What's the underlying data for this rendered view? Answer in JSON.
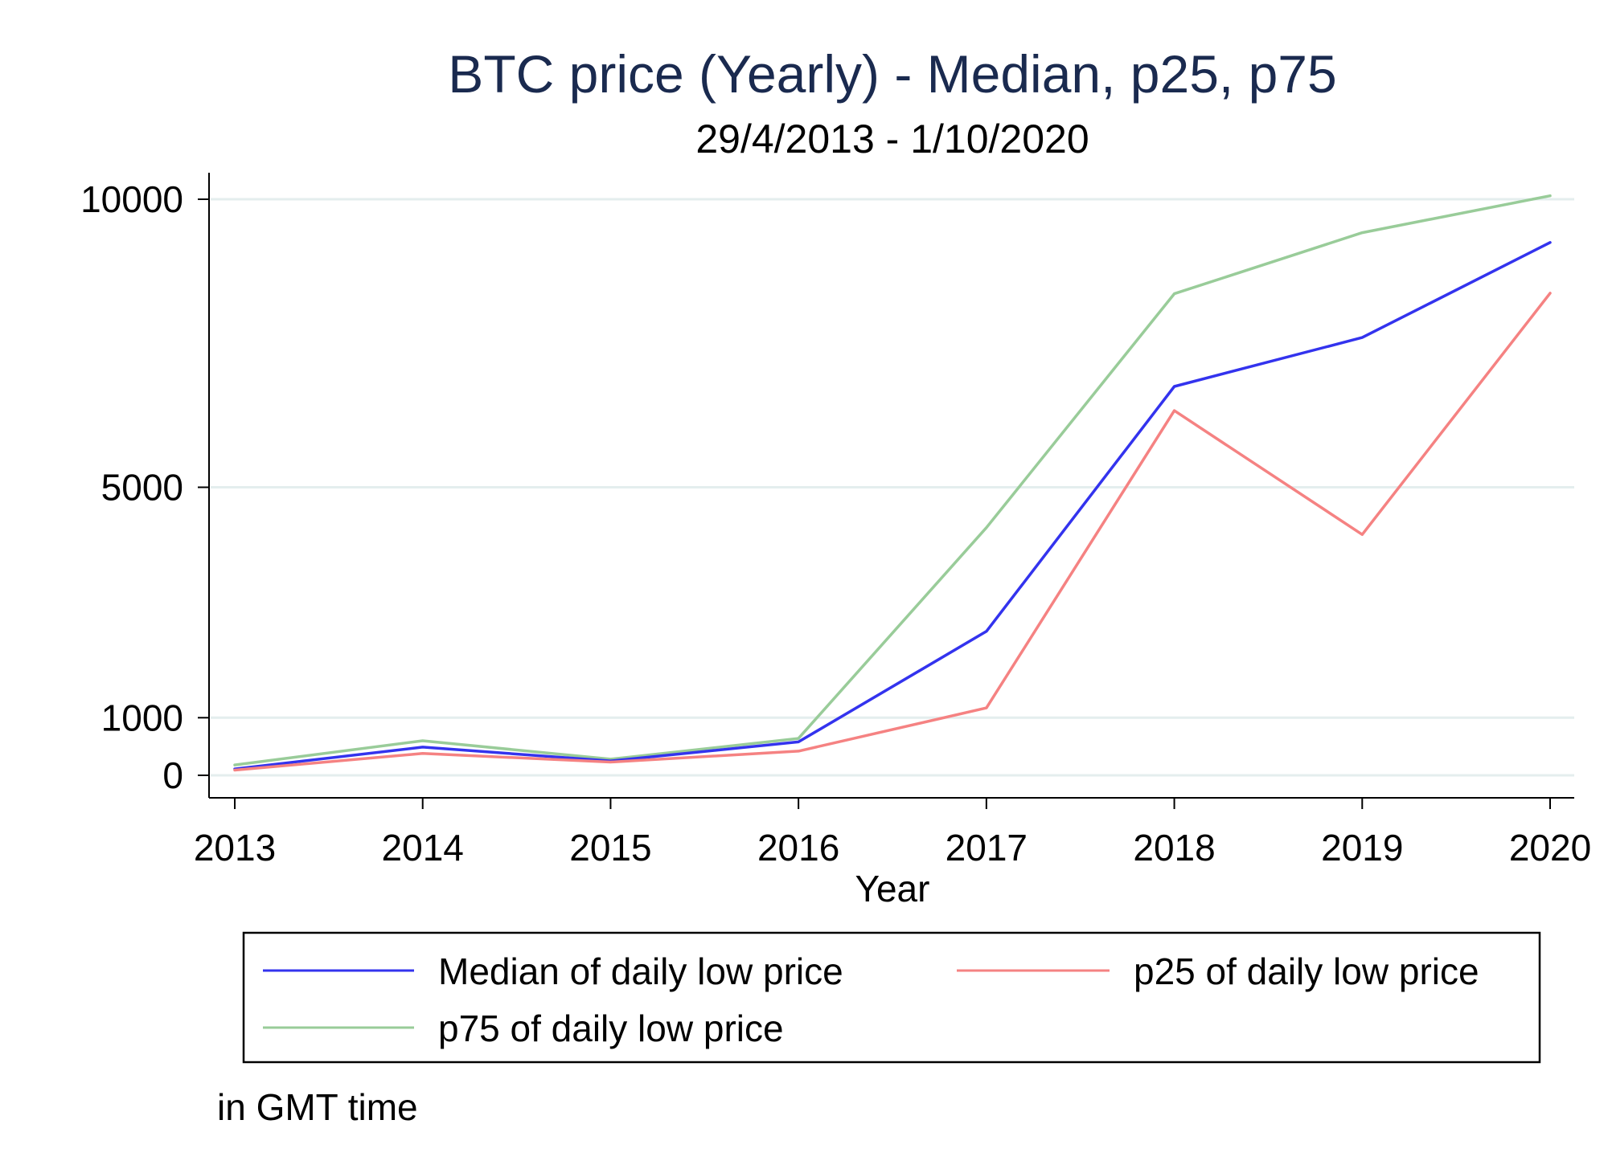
{
  "chart_data": {
    "type": "line",
    "title": "BTC price (Yearly) - Median, p25, p75",
    "subtitle": "29/4/2013 - 1/10/2020",
    "xlabel": "Year",
    "ylabel": "",
    "note": "in GMT time",
    "x": [
      2013,
      2014,
      2015,
      2016,
      2017,
      2018,
      2019,
      2020
    ],
    "x_ticks": [
      "2013",
      "2014",
      "2015",
      "2016",
      "2017",
      "2018",
      "2019",
      "2020"
    ],
    "xlim": [
      2013,
      2020
    ],
    "y_ticks": [
      0,
      1000,
      5000,
      10000
    ],
    "y_tick_labels": [
      "0",
      "1000",
      "5000",
      "10000"
    ],
    "ylim": [
      -450,
      10500
    ],
    "grid": "horizontal",
    "legend_position": "bottom",
    "series": [
      {
        "name": "Median of daily low price",
        "color": "#3333ee",
        "values": [
          110,
          490,
          250,
          580,
          2500,
          6750,
          7600,
          9250
        ]
      },
      {
        "name": "p25 of daily low price",
        "color": "#f58282",
        "values": [
          90,
          380,
          230,
          420,
          1170,
          6330,
          4180,
          8370
        ]
      },
      {
        "name": "p75 of daily low price",
        "color": "#99cc99",
        "values": [
          180,
          600,
          280,
          640,
          4300,
          8360,
          9420,
          10060
        ]
      }
    ]
  }
}
